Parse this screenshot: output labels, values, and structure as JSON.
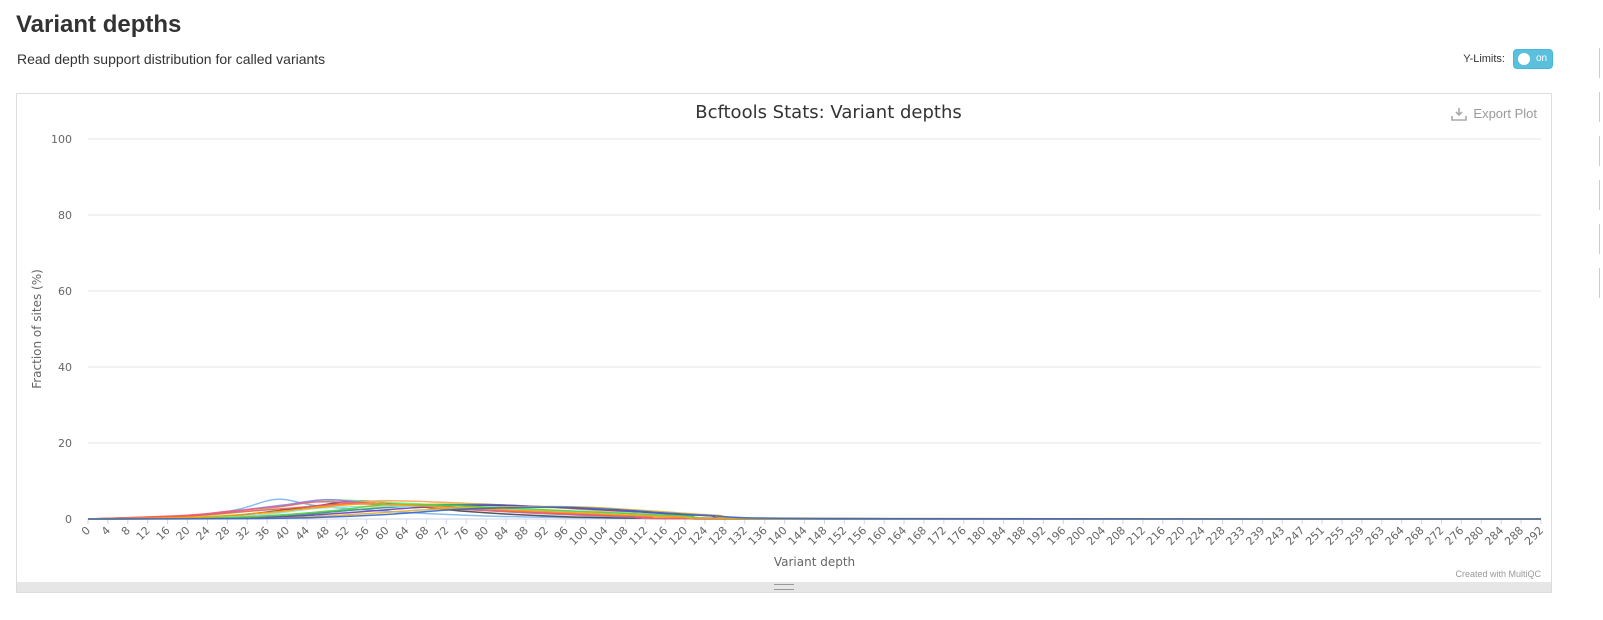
{
  "section": {
    "title": "Variant depths",
    "description": "Read depth support distribution for called variants"
  },
  "controls": {
    "ylimits_label": "Y-Limits:",
    "ylimits_state": "on"
  },
  "export": {
    "label": "Export Plot"
  },
  "credits": "Created with MultiQC",
  "colors": {
    "toggle": "#5bc0de",
    "series": [
      "#7cb5ec",
      "#434348",
      "#90ed7d",
      "#f7a35c",
      "#8085e9",
      "#f15c80",
      "#e4d354",
      "#2b908f",
      "#f45b5b",
      "#91e8e1",
      "#6f38b1",
      "#dfaf2b",
      "#4bd24b",
      "#ff9c00",
      "#3366cc"
    ]
  },
  "chart_data": {
    "type": "line",
    "title": "Bcftools Stats: Variant depths",
    "xlabel": "Variant depth",
    "ylabel": "Fraction of sites (%)",
    "ylim": [
      0,
      100
    ],
    "yticks": [
      0,
      20,
      40,
      60,
      80,
      100
    ],
    "xticks": [
      "0",
      "4",
      "8",
      "12",
      "16",
      "20",
      "24",
      "28",
      "32",
      "36",
      "40",
      "44",
      "48",
      "52",
      "56",
      "60",
      "64",
      "68",
      "72",
      "76",
      "80",
      "84",
      "88",
      "92",
      "96",
      "100",
      "104",
      "108",
      "112",
      "116",
      "120",
      "124",
      "128",
      "132",
      "136",
      "140",
      "144",
      "148",
      "152",
      "156",
      "160",
      "164",
      "168",
      "172",
      "176",
      "180",
      "184",
      "188",
      "192",
      "196",
      "200",
      "204",
      "208",
      "212",
      "216",
      "220",
      "224",
      "228",
      "233",
      "239",
      "243",
      "247",
      "251",
      "255",
      "259",
      "263",
      "264",
      "268",
      "272",
      "276",
      "280",
      "284",
      "288",
      "292"
    ],
    "grid": true,
    "legend": "none",
    "series": [
      {
        "x": [
          0,
          20,
          30,
          38,
          46,
          60,
          80,
          100,
          120,
          140,
          292
        ],
        "values": [
          0,
          0.8,
          2.5,
          5.2,
          3.5,
          2,
          0.8,
          0.3,
          0.1,
          0,
          0
        ]
      },
      {
        "x": [
          0,
          20,
          30,
          40,
          46,
          54,
          62,
          76,
          96,
          120,
          140,
          292
        ],
        "values": [
          0,
          0.2,
          1,
          2.5,
          3.5,
          4.8,
          4,
          2,
          0.6,
          0.1,
          0,
          0
        ]
      },
      {
        "x": [
          0,
          20,
          32,
          44,
          50,
          60,
          74,
          92,
          110,
          130,
          292
        ],
        "values": [
          0,
          0.6,
          2,
          4.2,
          5,
          4.4,
          3.5,
          2,
          0.7,
          0.1,
          0
        ]
      },
      {
        "x": [
          0,
          24,
          36,
          48,
          56,
          62,
          78,
          96,
          116,
          140,
          292
        ],
        "values": [
          0,
          0.3,
          1.3,
          3.5,
          4.6,
          4.8,
          4,
          2.8,
          1,
          0.1,
          0
        ]
      },
      {
        "x": [
          0,
          22,
          32,
          40,
          48,
          58,
          70,
          90,
          110,
          130,
          292
        ],
        "values": [
          0,
          1,
          2.5,
          3.8,
          5.1,
          4,
          3,
          1.5,
          0.5,
          0.1,
          0
        ]
      },
      {
        "x": [
          0,
          20,
          28,
          38,
          46,
          56,
          70,
          88,
          108,
          130,
          292
        ],
        "values": [
          0,
          1,
          2,
          3.2,
          4.5,
          4.2,
          3.2,
          2,
          0.8,
          0.1,
          0
        ]
      },
      {
        "x": [
          0,
          24,
          36,
          50,
          62,
          74,
          88,
          100,
          112,
          130,
          292
        ],
        "values": [
          0,
          0.2,
          0.8,
          2,
          3.5,
          4,
          3.2,
          2.6,
          1.3,
          0.2,
          0
        ]
      },
      {
        "x": [
          0,
          28,
          40,
          52,
          66,
          80,
          92,
          104,
          120,
          140,
          292
        ],
        "values": [
          0,
          0.2,
          0.8,
          2.2,
          3.5,
          3.8,
          3.2,
          2.8,
          1,
          0.1,
          0
        ]
      },
      {
        "x": [
          0,
          20,
          30,
          42,
          52,
          62,
          76,
          92,
          112,
          130,
          292
        ],
        "values": [
          0,
          0.8,
          1.8,
          3,
          4,
          3.6,
          2.5,
          1.5,
          0.6,
          0.1,
          0
        ]
      },
      {
        "x": [
          0,
          24,
          36,
          46,
          58,
          68,
          82,
          98,
          116,
          140,
          292
        ],
        "values": [
          0,
          0.4,
          1.2,
          2.8,
          3.4,
          3.2,
          2.6,
          2,
          1.1,
          0.1,
          0
        ]
      },
      {
        "x": [
          0,
          28,
          40,
          54,
          66,
          78,
          90,
          106,
          124,
          144,
          292
        ],
        "values": [
          0,
          0.2,
          0.6,
          1.8,
          3,
          3.6,
          3.3,
          2.2,
          0.9,
          0.1,
          0
        ]
      },
      {
        "x": [
          0,
          30,
          44,
          56,
          70,
          84,
          98,
          110,
          126,
          144,
          292
        ],
        "values": [
          0,
          0.1,
          0.5,
          1.4,
          2.6,
          3.2,
          3.2,
          2.4,
          1,
          0.1,
          0
        ]
      },
      {
        "x": [
          0,
          26,
          38,
          50,
          60,
          72,
          86,
          102,
          120,
          140,
          292
        ],
        "values": [
          0,
          0.3,
          1,
          2.3,
          3.8,
          3.6,
          2.8,
          1.8,
          0.8,
          0.1,
          0
        ]
      },
      {
        "x": [
          0,
          22,
          34,
          46,
          56,
          68,
          84,
          100,
          118,
          140,
          292
        ],
        "values": [
          0,
          0.5,
          1.5,
          3,
          4,
          3.4,
          2.4,
          1.5,
          0.6,
          0.1,
          0
        ]
      },
      {
        "x": [
          0,
          32,
          46,
          60,
          74,
          86,
          96,
          108,
          124,
          150,
          292
        ],
        "values": [
          0,
          0.1,
          0.4,
          1.2,
          2.5,
          3,
          3.1,
          2.3,
          1,
          0.1,
          0
        ]
      }
    ]
  }
}
